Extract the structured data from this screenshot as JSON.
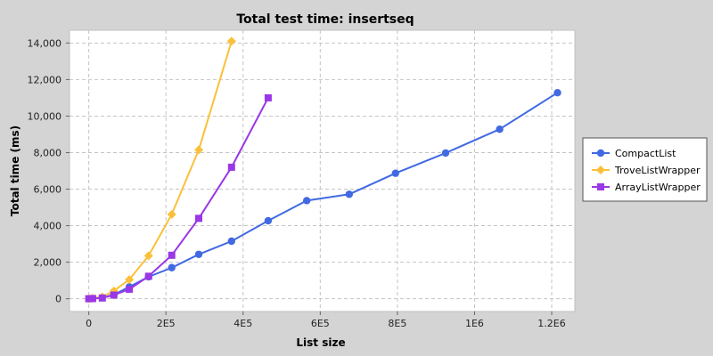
{
  "chart_data": {
    "type": "line",
    "title": "Total test time: insertseq",
    "xlabel": "List size",
    "ylabel": "Total time (ms)",
    "xlim": [
      -50000,
      1260000
    ],
    "ylim": [
      -700,
      14700
    ],
    "x_ticks": [
      {
        "value": 0,
        "label": "0"
      },
      {
        "value": 200000,
        "label": "2E5"
      },
      {
        "value": 400000,
        "label": "4E5"
      },
      {
        "value": 600000,
        "label": "6E5"
      },
      {
        "value": 800000,
        "label": "8E5"
      },
      {
        "value": 1000000,
        "label": "1E6"
      },
      {
        "value": 1200000,
        "label": "1.2E6"
      }
    ],
    "y_ticks": [
      {
        "value": 0,
        "label": "0"
      },
      {
        "value": 2000,
        "label": "2,000"
      },
      {
        "value": 4000,
        "label": "4,000"
      },
      {
        "value": 6000,
        "label": "6,000"
      },
      {
        "value": 8000,
        "label": "8,000"
      },
      {
        "value": 10000,
        "label": "10,000"
      },
      {
        "value": 12000,
        "label": "12,000"
      },
      {
        "value": 14000,
        "label": "14,000"
      }
    ],
    "grid": true,
    "legend_position": "right",
    "series": [
      {
        "name": "CompactList",
        "color": "#4169e1",
        "marker": "circle",
        "points": [
          [
            0,
            0
          ],
          [
            10000,
            15
          ],
          [
            35000,
            60
          ],
          [
            65000,
            220
          ],
          [
            105000,
            650
          ],
          [
            155000,
            1200
          ],
          [
            215000,
            1700
          ],
          [
            285000,
            2430
          ],
          [
            370000,
            3150
          ],
          [
            465000,
            4270
          ],
          [
            565000,
            5370
          ],
          [
            675000,
            5720
          ],
          [
            795000,
            6870
          ],
          [
            925000,
            7980
          ],
          [
            1065000,
            9280
          ],
          [
            1215000,
            11280
          ]
        ]
      },
      {
        "name": "TroveListWrapper",
        "color": "#fac03a",
        "marker": "diamond",
        "points": [
          [
            0,
            0
          ],
          [
            10000,
            30
          ],
          [
            35000,
            100
          ],
          [
            65000,
            430
          ],
          [
            105000,
            1050
          ],
          [
            155000,
            2350
          ],
          [
            215000,
            4620
          ],
          [
            285000,
            8150
          ],
          [
            370000,
            14100
          ]
        ]
      },
      {
        "name": "ArrayListWrapper",
        "color": "#9a37e6",
        "marker": "square",
        "points": [
          [
            0,
            0
          ],
          [
            10000,
            10
          ],
          [
            35000,
            40
          ],
          [
            65000,
            200
          ],
          [
            105000,
            520
          ],
          [
            155000,
            1230
          ],
          [
            215000,
            2380
          ],
          [
            285000,
            4400
          ],
          [
            370000,
            7200
          ],
          [
            465000,
            11000
          ]
        ]
      }
    ]
  }
}
